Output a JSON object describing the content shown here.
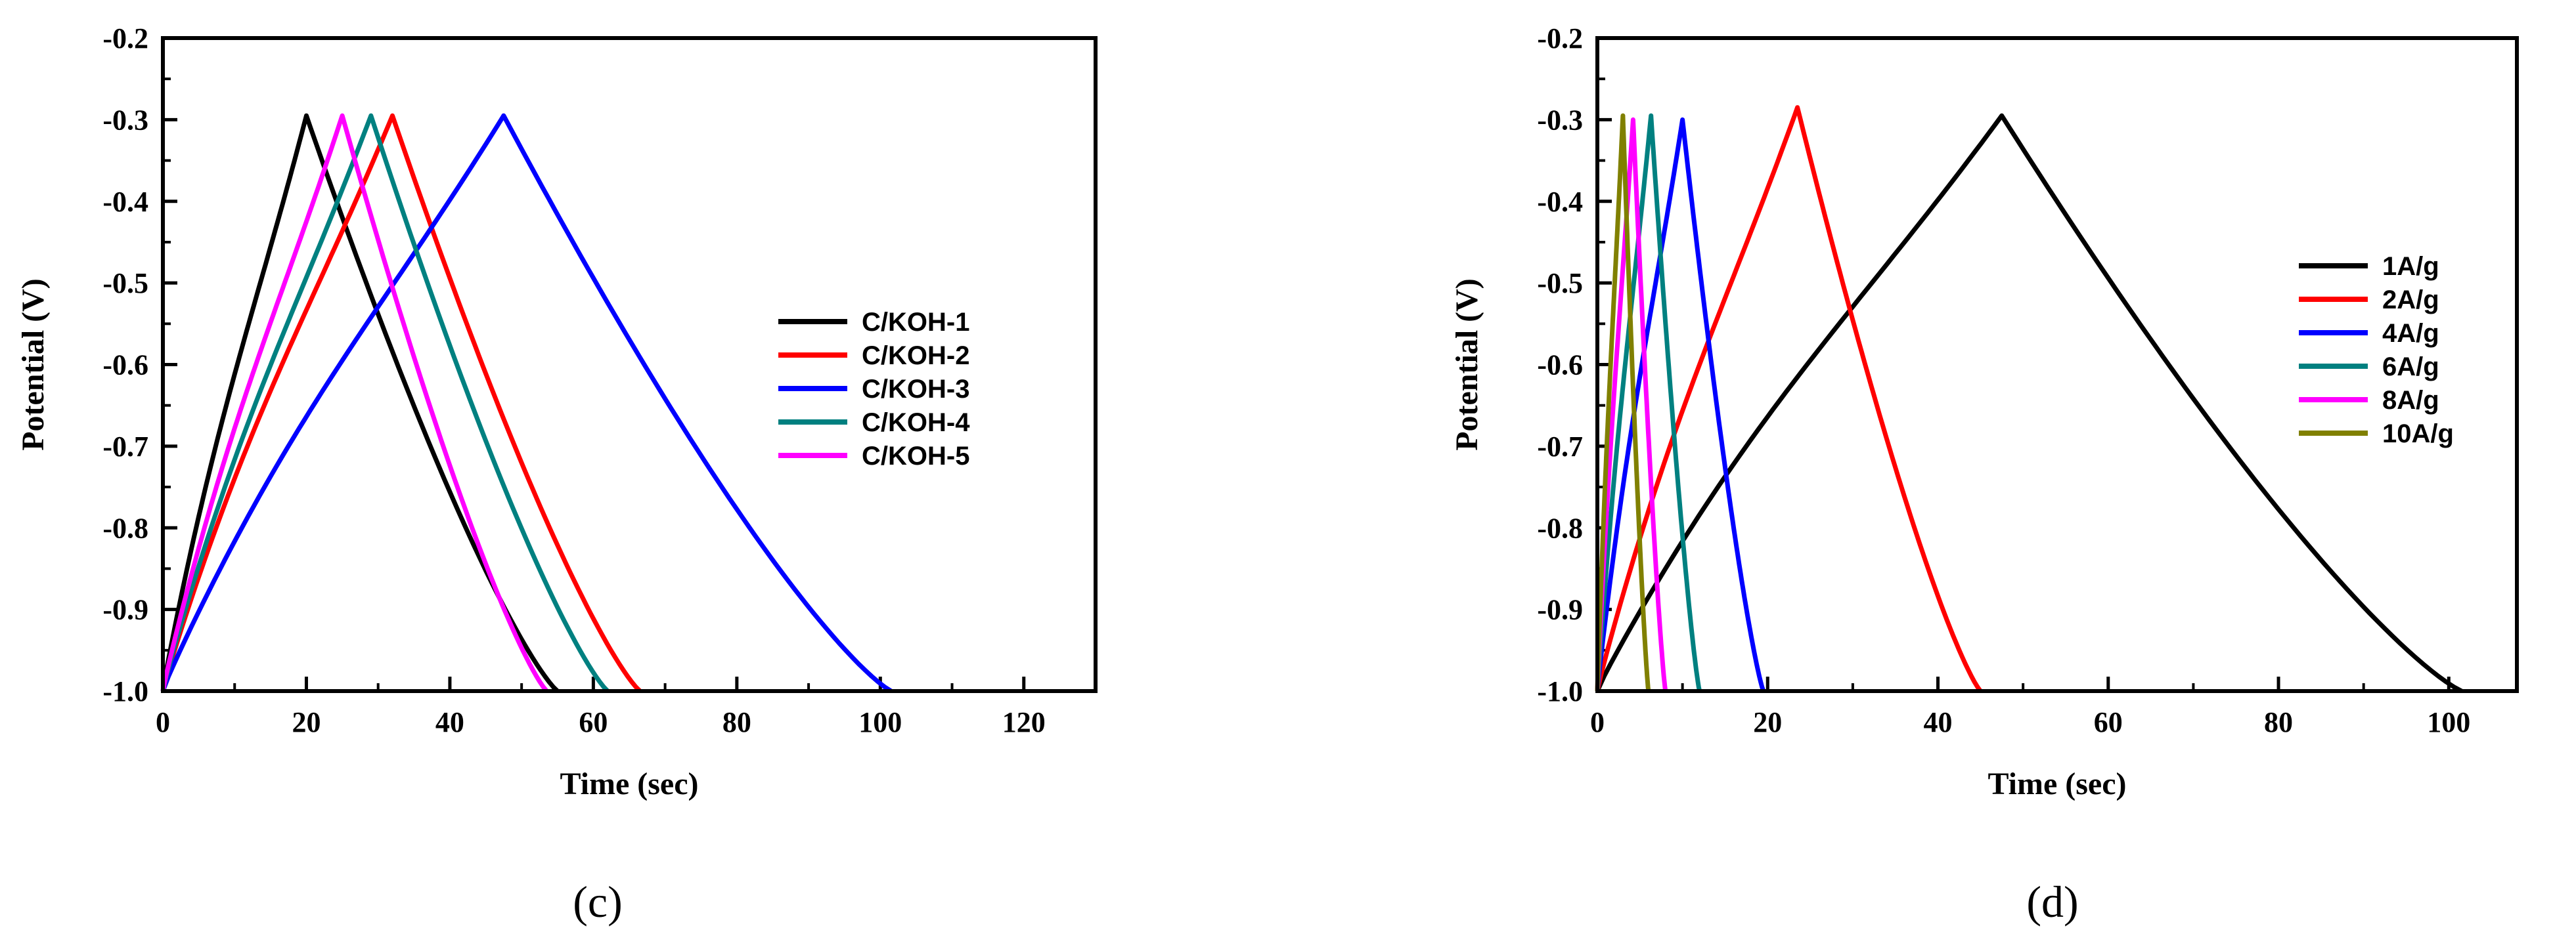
{
  "chart_data": [
    {
      "type": "line",
      "caption": "(c)",
      "xlabel": "Time (sec)",
      "ylabel": "Potential (V)",
      "xlim": [
        0,
        130
      ],
      "ylim": [
        -1.0,
        -0.2
      ],
      "xticks": [
        0,
        20,
        40,
        60,
        80,
        100,
        120
      ],
      "yticks": [
        -0.2,
        -0.3,
        -0.4,
        -0.5,
        -0.6,
        -0.7,
        -0.8,
        -0.9,
        -1.0
      ],
      "xtick_labels": [
        "0",
        "20",
        "40",
        "60",
        "80",
        "100",
        "120"
      ],
      "ytick_labels": [
        "-0.2",
        "-0.3",
        "-0.4",
        "-0.5",
        "-0.6",
        "-0.7",
        "-0.8",
        "-0.9",
        "-1.0"
      ],
      "legend_position": "center-right",
      "series": [
        {
          "name": "C/KOH-1",
          "color": "#000000",
          "t_start": 0,
          "t_peak": 20,
          "t_end": 55,
          "v_peak": -0.295
        },
        {
          "name": "C/KOH-2",
          "color": "#ff0000",
          "t_start": 0,
          "t_peak": 32,
          "t_end": 66.5,
          "v_peak": -0.295
        },
        {
          "name": "C/KOH-3",
          "color": "#0000ff",
          "t_start": 0,
          "t_peak": 47.5,
          "t_end": 101.5,
          "v_peak": -0.295
        },
        {
          "name": "C/KOH-4",
          "color": "#008080",
          "t_start": 0,
          "t_peak": 29,
          "t_end": 62,
          "v_peak": -0.295
        },
        {
          "name": "C/KOH-5",
          "color": "#ff00ff",
          "t_start": 0,
          "t_peak": 25,
          "t_end": 53.5,
          "v_peak": -0.295
        }
      ]
    },
    {
      "type": "line",
      "caption": "(d)",
      "xlabel": "Time (sec)",
      "ylabel": "Potential (V)",
      "xlim": [
        0,
        108
      ],
      "ylim": [
        -1.0,
        -0.2
      ],
      "xticks": [
        0,
        20,
        40,
        60,
        80,
        100
      ],
      "yticks": [
        -0.2,
        -0.3,
        -0.4,
        -0.5,
        -0.6,
        -0.7,
        -0.8,
        -0.9,
        -1.0
      ],
      "xtick_labels": [
        "0",
        "20",
        "40",
        "60",
        "80",
        "100"
      ],
      "ytick_labels": [
        "-0.2",
        "-0.3",
        "-0.4",
        "-0.5",
        "-0.6",
        "-0.7",
        "-0.8",
        "-0.9",
        "-1.0"
      ],
      "legend_position": "upper-right",
      "series": [
        {
          "name": "1A/g",
          "color": "#000000",
          "t_start": 0,
          "t_peak": 47.5,
          "t_end": 101.5,
          "v_peak": -0.295
        },
        {
          "name": "2A/g",
          "color": "#ff0000",
          "t_start": 0,
          "t_peak": 23.5,
          "t_end": 45,
          "v_peak": -0.285
        },
        {
          "name": "4A/g",
          "color": "#0000ff",
          "t_start": 0,
          "t_peak": 10,
          "t_end": 19.5,
          "v_peak": -0.3
        },
        {
          "name": "6A/g",
          "color": "#008080",
          "t_start": 0,
          "t_peak": 6.3,
          "t_end": 12,
          "v_peak": -0.295
        },
        {
          "name": "8A/g",
          "color": "#ff00ff",
          "t_start": 0,
          "t_peak": 4.2,
          "t_end": 8,
          "v_peak": -0.3
        },
        {
          "name": "10A/g",
          "color": "#808000",
          "t_start": 0,
          "t_peak": 3,
          "t_end": 6,
          "v_peak": -0.295
        }
      ]
    }
  ]
}
